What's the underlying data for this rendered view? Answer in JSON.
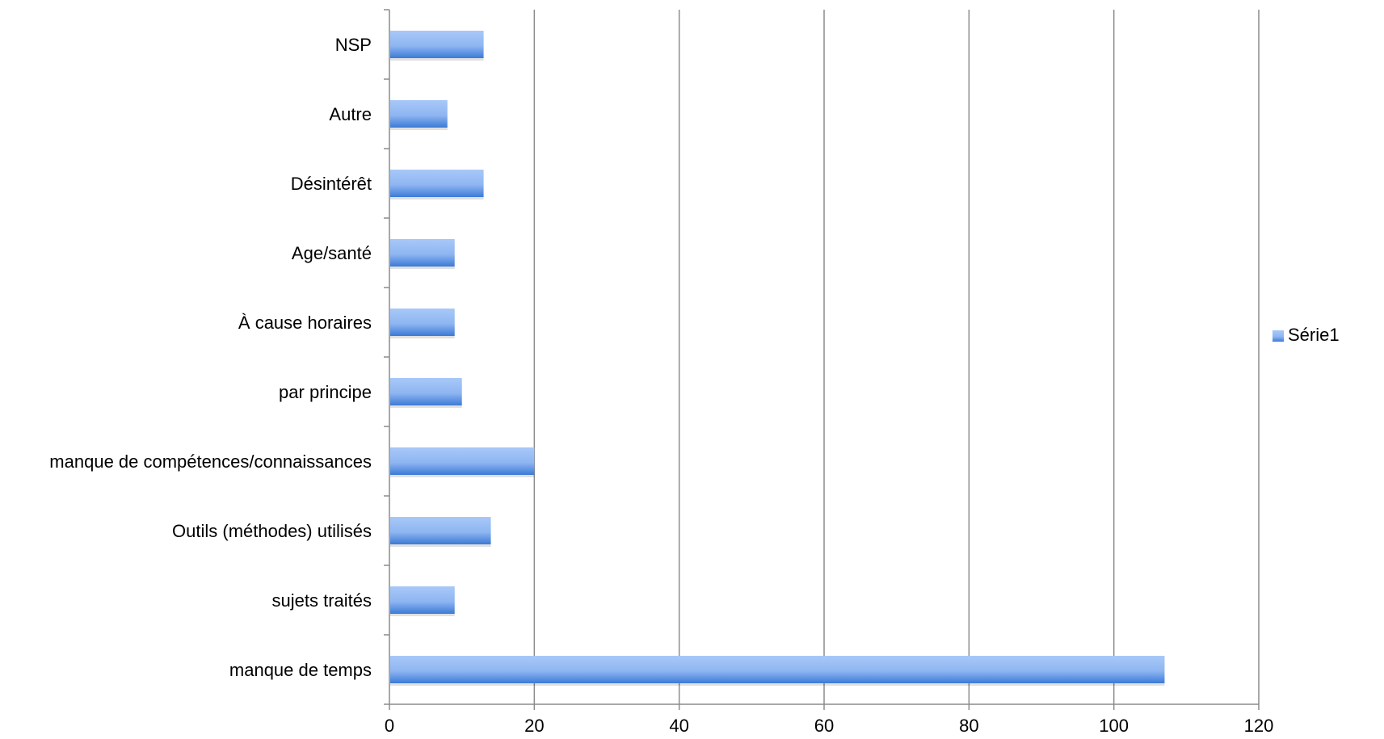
{
  "chart_data": {
    "type": "bar",
    "orientation": "horizontal",
    "categories": [
      "manque de temps",
      "sujets traités",
      "Outils (méthodes) utilisés",
      "manque de compétences/connaissances",
      "par principe",
      "À cause horaires",
      "Age/santé",
      "Désintérêt",
      "Autre",
      "NSP"
    ],
    "series": [
      {
        "name": "Série1",
        "values": [
          107,
          9,
          14,
          20,
          10,
          9,
          9,
          13,
          8,
          13
        ]
      }
    ],
    "xlim": [
      0,
      120
    ],
    "xticks": [
      0,
      20,
      40,
      60,
      80,
      100,
      120
    ],
    "grid": "vertical",
    "legend": "right",
    "colors": {
      "bar_light": "#a8c8f8",
      "bar_dark": "#3c7ad6",
      "grid": "#8c8c8c",
      "axis": "#8c8c8c"
    }
  }
}
